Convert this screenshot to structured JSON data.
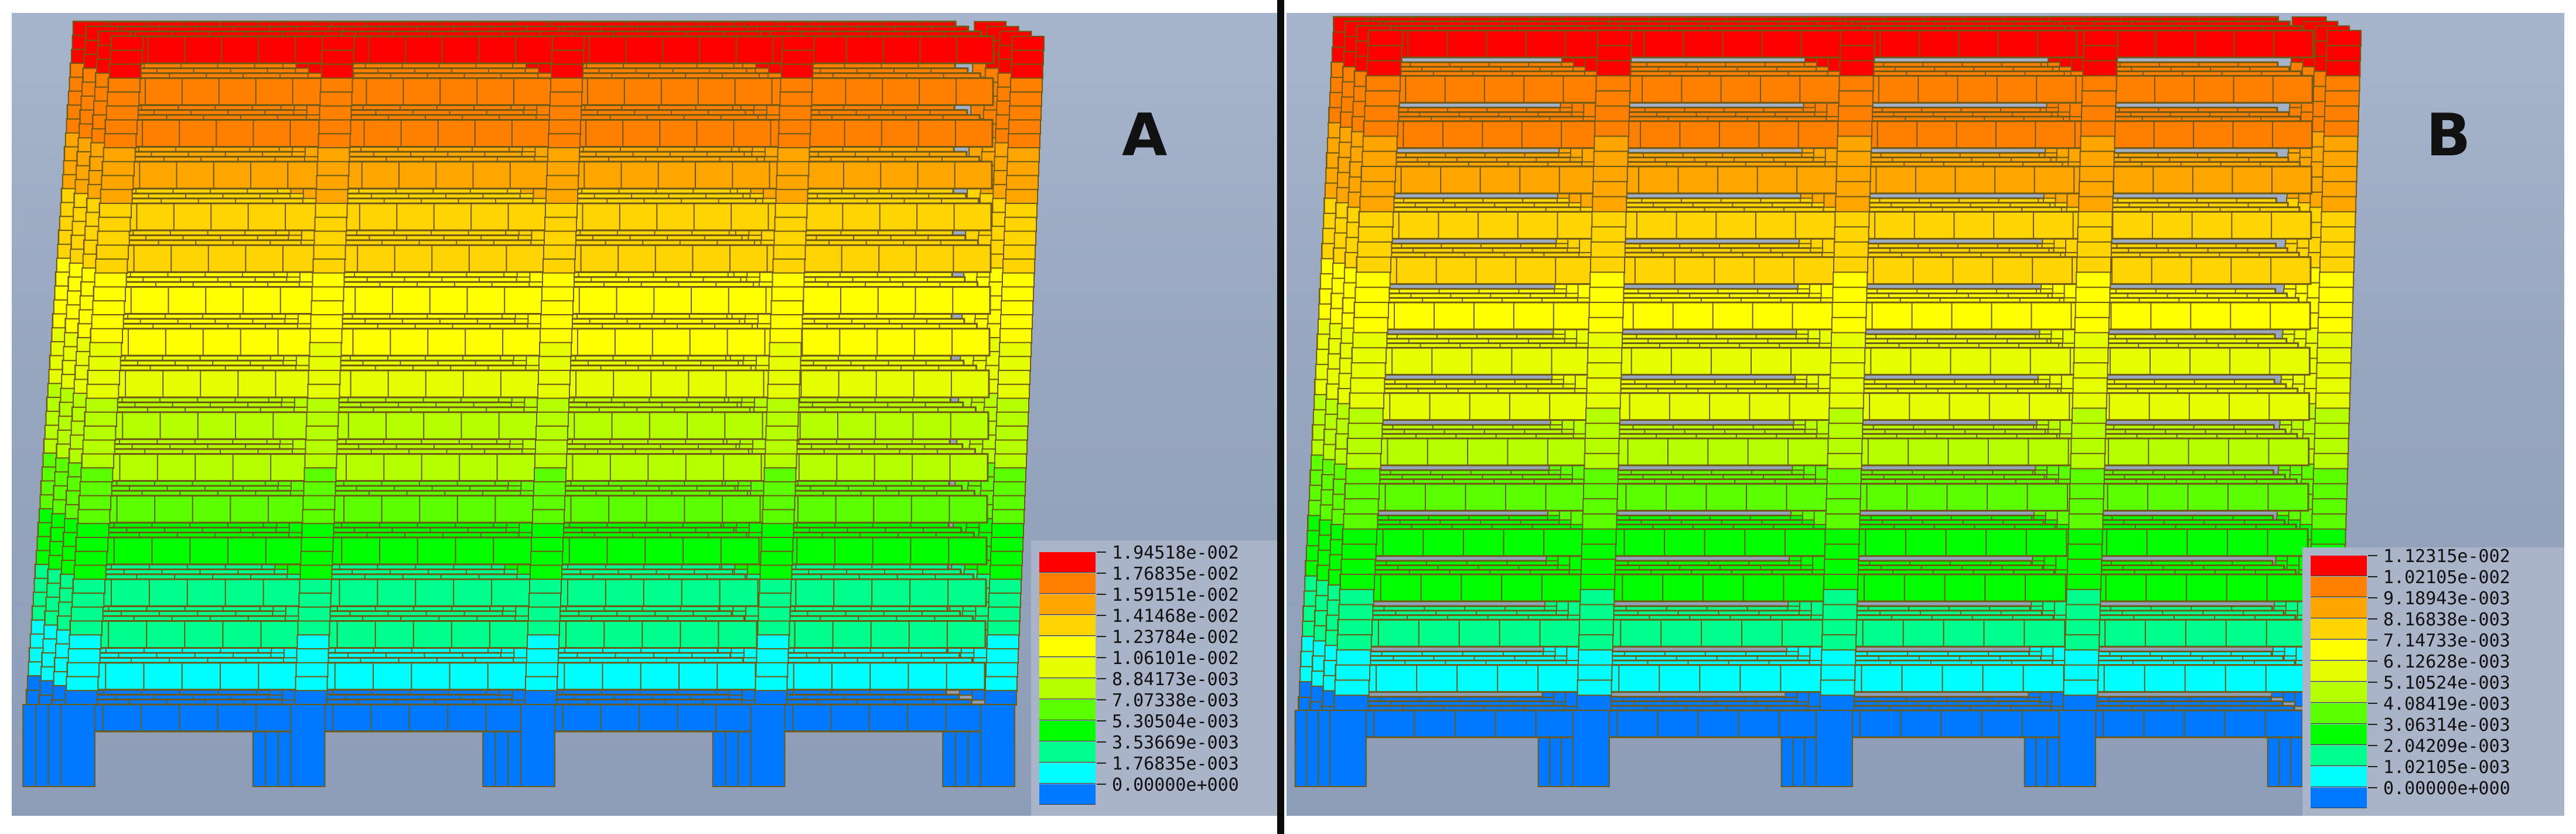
{
  "panels": [
    {
      "label": "A",
      "legend": [
        {
          "value": "1.94518e-002",
          "color": "#ff0000"
        },
        {
          "value": "1.76835e-002",
          "color": "#ff7f00"
        },
        {
          "value": "1.59151e-002",
          "color": "#ffa500"
        },
        {
          "value": "1.41468e-002",
          "color": "#ffd400"
        },
        {
          "value": "1.23784e-002",
          "color": "#ffff00"
        },
        {
          "value": "1.06101e-002",
          "color": "#e6ff00"
        },
        {
          "value": "8.84173e-003",
          "color": "#b4ff00"
        },
        {
          "value": "7.07338e-003",
          "color": "#5aff00"
        },
        {
          "value": "5.30504e-003",
          "color": "#00ff00"
        },
        {
          "value": "3.53669e-003",
          "color": "#00ff8c"
        },
        {
          "value": "1.76835e-003",
          "color": "#00ffff"
        },
        {
          "value": "0.00000e+000",
          "color": "#0078ff"
        }
      ]
    },
    {
      "label": "B",
      "legend": [
        {
          "value": "1.12315e-002",
          "color": "#ff0000"
        },
        {
          "value": "1.02105e-002",
          "color": "#ff7f00"
        },
        {
          "value": "9.18943e-003",
          "color": "#ffa500"
        },
        {
          "value": "8.16838e-003",
          "color": "#ffd400"
        },
        {
          "value": "7.14733e-003",
          "color": "#ffff00"
        },
        {
          "value": "6.12628e-003",
          "color": "#e6ff00"
        },
        {
          "value": "5.10524e-003",
          "color": "#b4ff00"
        },
        {
          "value": "4.08419e-003",
          "color": "#5aff00"
        },
        {
          "value": "3.06314e-003",
          "color": "#00ff00"
        },
        {
          "value": "2.04209e-003",
          "color": "#00ff8c"
        },
        {
          "value": "1.02105e-003",
          "color": "#00ffff"
        },
        {
          "value": "0.00000e+000",
          "color": "#0078ff"
        }
      ]
    }
  ],
  "colors": {
    "background_top": "#a7b5cc",
    "background_bottom": "#8e9db7",
    "mesh_line": "#6e5a14",
    "divider": "#0a0a0a"
  }
}
